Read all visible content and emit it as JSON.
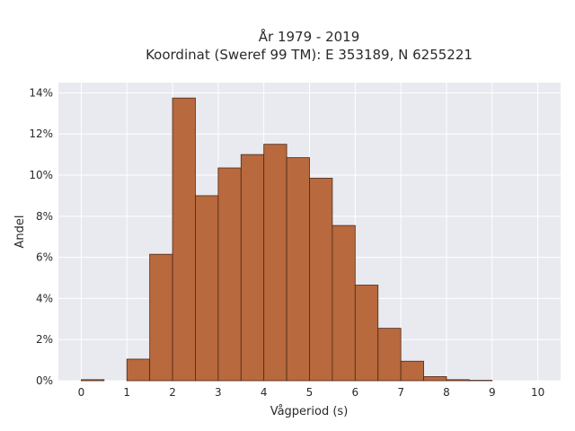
{
  "chart_data": {
    "type": "bar",
    "title_lines": [
      "År 1979 - 2019",
      "Koordinat (Sweref 99 TM): E 353189, N 6255221"
    ],
    "xlabel": "Vågperiod (s)",
    "ylabel": "Andel",
    "xlim": [
      -0.5,
      10.5
    ],
    "ylim": [
      0,
      14.5
    ],
    "x_ticks": [
      0,
      1,
      2,
      3,
      4,
      5,
      6,
      7,
      8,
      9,
      10
    ],
    "x_tick_labels": [
      "0",
      "1",
      "2",
      "3",
      "4",
      "5",
      "6",
      "7",
      "8",
      "9",
      "10"
    ],
    "y_ticks": [
      0,
      2,
      4,
      6,
      8,
      10,
      12,
      14
    ],
    "y_tick_labels": [
      "0%",
      "2%",
      "4%",
      "6%",
      "8%",
      "10%",
      "12%",
      "14%"
    ],
    "bin_width": 0.5,
    "bin_starts": [
      0,
      1,
      1.5,
      2,
      2.5,
      3,
      3.5,
      4,
      4.5,
      5,
      5.5,
      6,
      6.5,
      7,
      7.5,
      8,
      8.5
    ],
    "values": [
      0.05,
      1.05,
      6.15,
      13.75,
      9.0,
      10.35,
      11.0,
      11.5,
      10.85,
      9.85,
      7.55,
      4.65,
      2.55,
      0.95,
      0.2,
      0.05,
      0.02
    ],
    "unit": "%",
    "grid": true,
    "colors": {
      "bar_fill": "#b8693d",
      "bar_stroke": "#4a2a18",
      "plot_background": "#e9e9f0",
      "grid": "#ffffff"
    }
  }
}
